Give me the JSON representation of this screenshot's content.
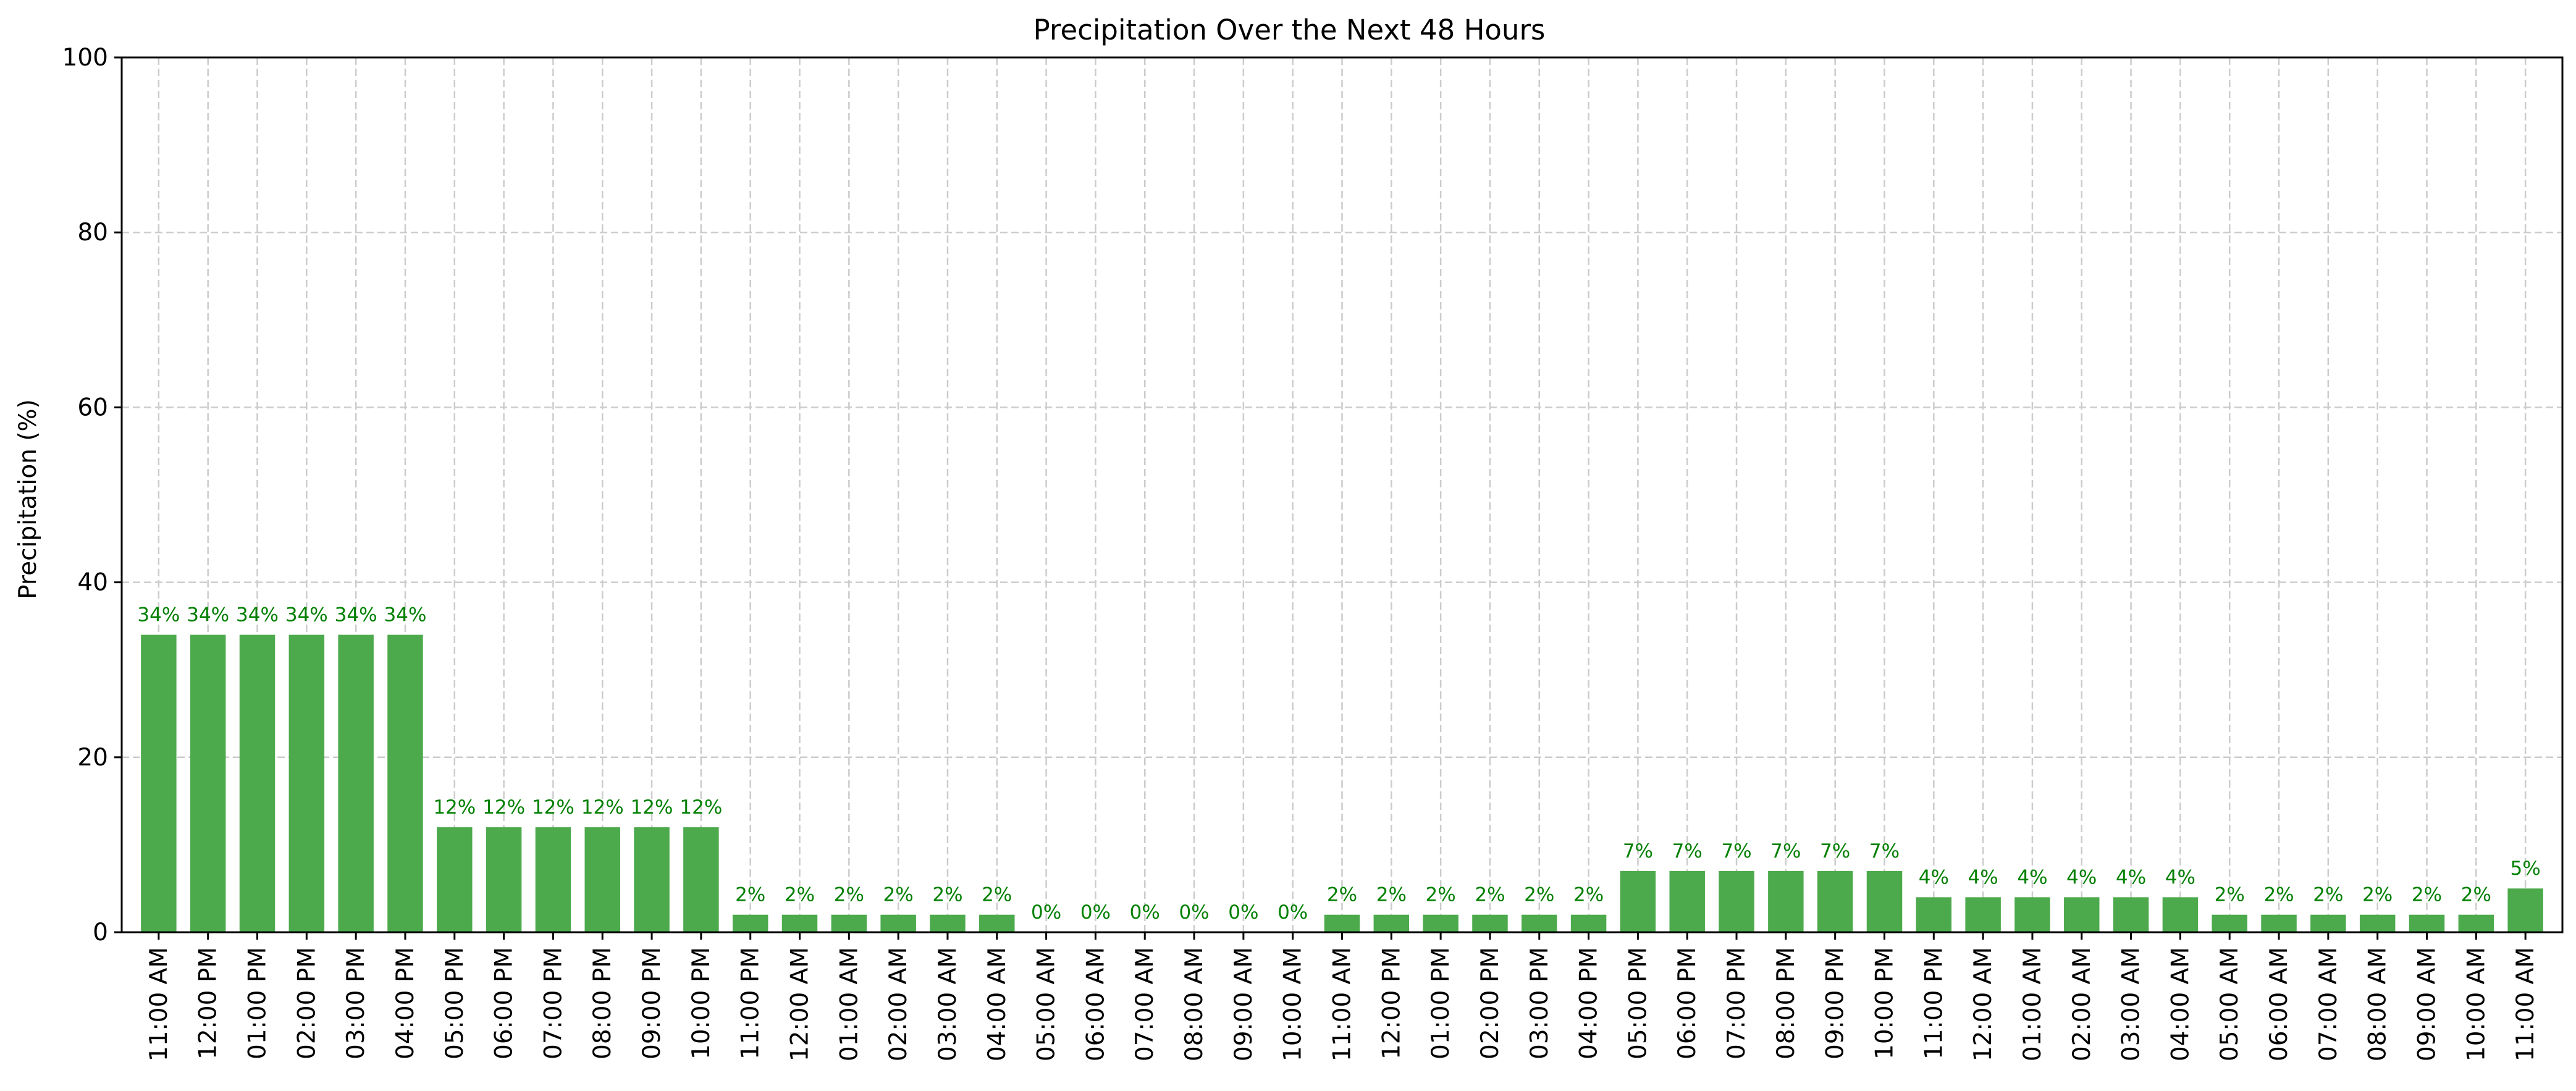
{
  "chart_data": {
    "type": "bar",
    "title": "Precipitation Over the Next 48 Hours",
    "xlabel": "",
    "ylabel": "Precipitation (%)",
    "ylim": [
      0,
      100
    ],
    "yticks": [
      0,
      20,
      40,
      60,
      80,
      100
    ],
    "grid": true,
    "bar_color": "#4caa4c",
    "label_color": "#008000",
    "label_suffix": "%",
    "categories": [
      "11:00 AM",
      "12:00 PM",
      "01:00 PM",
      "02:00 PM",
      "03:00 PM",
      "04:00 PM",
      "05:00 PM",
      "06:00 PM",
      "07:00 PM",
      "08:00 PM",
      "09:00 PM",
      "10:00 PM",
      "11:00 PM",
      "12:00 AM",
      "01:00 AM",
      "02:00 AM",
      "03:00 AM",
      "04:00 AM",
      "05:00 AM",
      "06:00 AM",
      "07:00 AM",
      "08:00 AM",
      "09:00 AM",
      "10:00 AM",
      "11:00 AM",
      "12:00 PM",
      "01:00 PM",
      "02:00 PM",
      "03:00 PM",
      "04:00 PM",
      "05:00 PM",
      "06:00 PM",
      "07:00 PM",
      "08:00 PM",
      "09:00 PM",
      "10:00 PM",
      "11:00 PM",
      "12:00 AM",
      "01:00 AM",
      "02:00 AM",
      "03:00 AM",
      "04:00 AM",
      "05:00 AM",
      "06:00 AM",
      "07:00 AM",
      "08:00 AM",
      "09:00 AM",
      "10:00 AM",
      "11:00 AM"
    ],
    "values": [
      34,
      34,
      34,
      34,
      34,
      34,
      12,
      12,
      12,
      12,
      12,
      12,
      2,
      2,
      2,
      2,
      2,
      2,
      0,
      0,
      0,
      0,
      0,
      0,
      2,
      2,
      2,
      2,
      2,
      2,
      7,
      7,
      7,
      7,
      7,
      7,
      4,
      4,
      4,
      4,
      4,
      4,
      2,
      2,
      2,
      2,
      2,
      2,
      5
    ]
  }
}
